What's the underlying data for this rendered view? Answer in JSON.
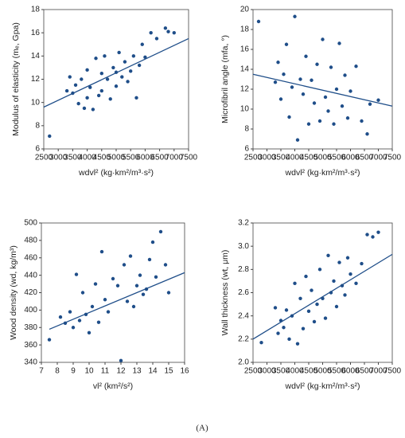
{
  "chart_data": [
    {
      "type": "scatter",
      "xlabel": "wdvl² (kg·km²/m³·s²)",
      "ylabel": "Modulus of elasticity (mₑ, Gpa)",
      "color": "#1f4e89",
      "x": [
        2700,
        3300,
        3400,
        3500,
        3600,
        3700,
        3800,
        3900,
        4000,
        4000,
        4100,
        4200,
        4300,
        4400,
        4500,
        4500,
        4600,
        4700,
        4800,
        4900,
        5000,
        5000,
        5100,
        5200,
        5300,
        5400,
        5500,
        5600,
        5700,
        5800,
        5900,
        6000,
        6200,
        6400,
        6700,
        6800,
        7000
      ],
      "values": [
        7.1,
        11.0,
        12.2,
        10.8,
        11.5,
        9.9,
        12.0,
        9.5,
        12.8,
        10.4,
        11.3,
        9.4,
        13.8,
        10.6,
        12.5,
        11.0,
        14.0,
        12.0,
        10.3,
        13.0,
        12.6,
        11.4,
        14.3,
        12.2,
        13.5,
        11.8,
        12.7,
        14.0,
        10.4,
        13.2,
        15.0,
        13.9,
        16.0,
        15.5,
        16.4,
        16.1,
        16.0
      ],
      "fit": {
        "x": [
          2500,
          7500
        ],
        "y": [
          9.6,
          15.5
        ]
      },
      "xlim": [
        2500,
        7500
      ],
      "xticks": [
        2500,
        3000,
        3500,
        4000,
        4500,
        5000,
        5500,
        6000,
        6500,
        7000,
        7500
      ],
      "ylim": [
        6,
        18
      ],
      "yticks": [
        6,
        8,
        10,
        12,
        14,
        16,
        18
      ]
    },
    {
      "type": "scatter",
      "xlabel": "wdvl² (kg·km²/m³·s²)",
      "ylabel": "Microfibril angle (mfa, °)",
      "color": "#1f4e89",
      "x": [
        2700,
        3300,
        3400,
        3500,
        3600,
        3700,
        3800,
        3900,
        4000,
        4100,
        4200,
        4300,
        4400,
        4500,
        4600,
        4700,
        4800,
        4900,
        5000,
        5100,
        5200,
        5300,
        5400,
        5500,
        5600,
        5700,
        5800,
        5900,
        6000,
        6200,
        6400,
        6600,
        6700,
        7000
      ],
      "values": [
        18.8,
        12.7,
        14.7,
        11.0,
        13.5,
        16.5,
        9.2,
        12.2,
        19.3,
        6.9,
        13.0,
        11.5,
        15.3,
        8.5,
        12.9,
        10.6,
        14.5,
        8.8,
        17.0,
        11.2,
        9.8,
        14.2,
        8.5,
        12.0,
        16.6,
        10.3,
        13.4,
        9.1,
        11.8,
        14.3,
        8.8,
        7.5,
        10.5,
        10.9
      ],
      "fit": {
        "x": [
          2500,
          7500
        ],
        "y": [
          13.5,
          10.3
        ]
      },
      "xlim": [
        2500,
        7500
      ],
      "xticks": [
        2500,
        3000,
        3500,
        4000,
        4500,
        5000,
        5500,
        6000,
        6500,
        7000,
        7500
      ],
      "ylim": [
        6,
        20
      ],
      "yticks": [
        6,
        8,
        10,
        12,
        14,
        16,
        18,
        20
      ]
    },
    {
      "type": "scatter",
      "xlabel": "vl² (km²/s²)",
      "ylabel": "Wood density (wd, kg/m³)",
      "color": "#1f4e89",
      "x": [
        7.5,
        8.2,
        8.5,
        8.8,
        9.0,
        9.2,
        9.4,
        9.6,
        9.8,
        10.0,
        10.2,
        10.4,
        10.6,
        10.8,
        11.0,
        11.2,
        11.5,
        11.8,
        12.0,
        12.2,
        12.4,
        12.6,
        12.8,
        13.0,
        13.2,
        13.4,
        13.6,
        13.8,
        14.0,
        14.2,
        14.5,
        14.8,
        15.0
      ],
      "values": [
        366,
        392,
        385,
        398,
        380,
        441,
        388,
        420,
        395,
        374,
        404,
        430,
        386,
        467,
        412,
        398,
        436,
        428,
        342,
        452,
        410,
        462,
        404,
        428,
        440,
        418,
        424,
        458,
        478,
        438,
        490,
        452,
        420
      ],
      "fit": {
        "x": [
          7.5,
          16
        ],
        "y": [
          378,
          443
        ]
      },
      "xlim": [
        7,
        16
      ],
      "xticks": [
        7,
        8,
        9,
        10,
        11,
        12,
        13,
        14,
        15,
        16
      ],
      "ylim": [
        340,
        500
      ],
      "yticks": [
        340,
        360,
        380,
        400,
        420,
        440,
        460,
        480,
        500
      ]
    },
    {
      "type": "scatter",
      "xlabel": "wdvl² (kg·km²/m³·s²)",
      "ylabel": "Wall thickness (wt, μm)",
      "color": "#1f4e89",
      "x": [
        2800,
        3300,
        3400,
        3500,
        3600,
        3700,
        3800,
        3900,
        4000,
        4100,
        4200,
        4300,
        4400,
        4500,
        4600,
        4700,
        4800,
        4900,
        5000,
        5100,
        5200,
        5300,
        5400,
        5500,
        5600,
        5700,
        5800,
        5900,
        6000,
        6200,
        6400,
        6600,
        6800,
        7000
      ],
      "values": [
        2.17,
        2.47,
        2.25,
        2.36,
        2.3,
        2.45,
        2.2,
        2.4,
        2.68,
        2.16,
        2.55,
        2.29,
        2.74,
        2.44,
        2.62,
        2.35,
        2.5,
        2.8,
        2.55,
        2.38,
        2.92,
        2.6,
        2.7,
        2.48,
        2.86,
        2.66,
        2.58,
        2.9,
        2.76,
        2.68,
        2.85,
        3.1,
        3.08,
        3.12
      ],
      "fit": {
        "x": [
          2500,
          7500
        ],
        "y": [
          2.2,
          2.93
        ]
      },
      "xlim": [
        2500,
        7500
      ],
      "xticks": [
        2500,
        3000,
        3500,
        4000,
        4500,
        5000,
        5500,
        6000,
        6500,
        7000,
        7500
      ],
      "ylim": [
        2,
        3.2
      ],
      "yticks": [
        {
          "value": 2,
          "label": "2.0"
        },
        2.2,
        2.4,
        2.6,
        2.8,
        {
          "value": 3,
          "label": "3.0"
        },
        3.2
      ]
    }
  ],
  "caption": "(A)"
}
